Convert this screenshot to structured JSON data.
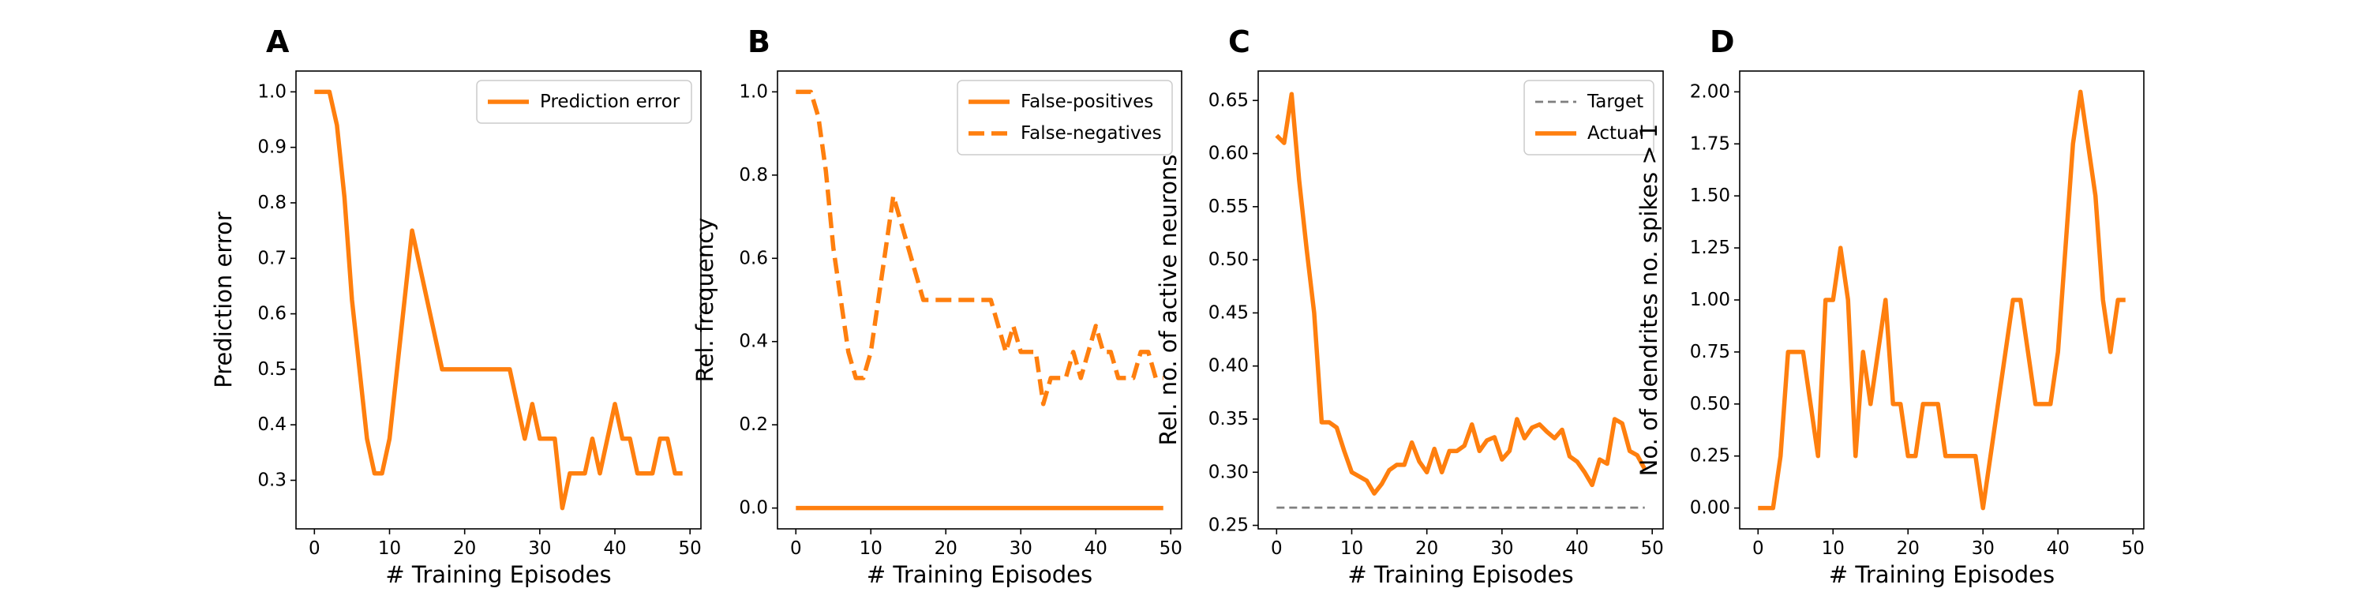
{
  "colors": {
    "orange": "#ff7f0e",
    "target_gray": "#7f7f7f",
    "frame": "#000000",
    "legend_border": "#cccccc"
  },
  "chart_data": [
    {
      "panel": "A",
      "type": "line",
      "xlabel": "# Training Episodes",
      "ylabel": "Prediction error",
      "xlim": [
        -2.45,
        51.45
      ],
      "ylim": [
        0.2125,
        1.0375
      ],
      "xticks": [
        0,
        10,
        20,
        30,
        40,
        50
      ],
      "yticks": [
        0.3,
        0.4,
        0.5,
        0.6,
        0.7,
        0.8,
        0.9,
        1.0
      ],
      "ytick_labels": [
        "0.3",
        "0.4",
        "0.5",
        "0.6",
        "0.7",
        "0.8",
        "0.9",
        "1.0"
      ],
      "grid": false,
      "legend_position": "upper right",
      "x": [
        0,
        1,
        2,
        3,
        4,
        5,
        6,
        7,
        8,
        9,
        10,
        11,
        12,
        13,
        14,
        15,
        16,
        17,
        18,
        19,
        20,
        21,
        22,
        23,
        24,
        25,
        26,
        27,
        28,
        29,
        30,
        31,
        32,
        33,
        34,
        35,
        36,
        37,
        38,
        39,
        40,
        41,
        42,
        43,
        44,
        45,
        46,
        47,
        48,
        49
      ],
      "series": [
        {
          "name": "Prediction error",
          "style": "solid",
          "color": "#ff7f0e",
          "values": [
            1.0,
            1.0,
            1.0,
            0.94,
            0.81,
            0.625,
            0.5,
            0.375,
            0.3125,
            0.3125,
            0.375,
            0.5,
            0.625,
            0.75,
            0.6875,
            0.625,
            0.5625,
            0.5,
            0.5,
            0.5,
            0.5,
            0.5,
            0.5,
            0.5,
            0.5,
            0.5,
            0.5,
            0.4375,
            0.375,
            0.4375,
            0.375,
            0.375,
            0.375,
            0.25,
            0.3125,
            0.3125,
            0.3125,
            0.375,
            0.3125,
            0.375,
            0.4375,
            0.375,
            0.375,
            0.3125,
            0.3125,
            0.3125,
            0.375,
            0.375,
            0.3125,
            0.3125
          ]
        }
      ]
    },
    {
      "panel": "B",
      "type": "line",
      "xlabel": "# Training Episodes",
      "ylabel": "Rel. frequency",
      "xlim": [
        -2.45,
        51.45
      ],
      "ylim": [
        -0.05,
        1.05
      ],
      "xticks": [
        0,
        10,
        20,
        30,
        40,
        50
      ],
      "yticks": [
        0.0,
        0.2,
        0.4,
        0.6,
        0.8,
        1.0
      ],
      "ytick_labels": [
        "0.0",
        "0.2",
        "0.4",
        "0.6",
        "0.8",
        "1.0"
      ],
      "grid": false,
      "legend_position": "upper right",
      "x": [
        0,
        1,
        2,
        3,
        4,
        5,
        6,
        7,
        8,
        9,
        10,
        11,
        12,
        13,
        14,
        15,
        16,
        17,
        18,
        19,
        20,
        21,
        22,
        23,
        24,
        25,
        26,
        27,
        28,
        29,
        30,
        31,
        32,
        33,
        34,
        35,
        36,
        37,
        38,
        39,
        40,
        41,
        42,
        43,
        44,
        45,
        46,
        47,
        48,
        49
      ],
      "series": [
        {
          "name": "False-positives",
          "style": "solid",
          "color": "#ff7f0e",
          "values": [
            0,
            0,
            0,
            0,
            0,
            0,
            0,
            0,
            0,
            0,
            0,
            0,
            0,
            0,
            0,
            0,
            0,
            0,
            0,
            0,
            0,
            0,
            0,
            0,
            0,
            0,
            0,
            0,
            0,
            0,
            0,
            0,
            0,
            0,
            0,
            0,
            0,
            0,
            0,
            0,
            0,
            0,
            0,
            0,
            0,
            0,
            0,
            0,
            0,
            0
          ]
        },
        {
          "name": "False-negatives",
          "style": "dashed",
          "color": "#ff7f0e",
          "values": [
            1.0,
            1.0,
            1.0,
            0.94,
            0.81,
            0.625,
            0.5,
            0.375,
            0.3125,
            0.3125,
            0.375,
            0.5,
            0.625,
            0.75,
            0.6875,
            0.625,
            0.5625,
            0.5,
            0.5,
            0.5,
            0.5,
            0.5,
            0.5,
            0.5,
            0.5,
            0.5,
            0.5,
            0.4375,
            0.375,
            0.4375,
            0.375,
            0.375,
            0.375,
            0.25,
            0.3125,
            0.3125,
            0.3125,
            0.375,
            0.3125,
            0.375,
            0.4375,
            0.375,
            0.375,
            0.3125,
            0.3125,
            0.3125,
            0.375,
            0.375,
            0.3125,
            0.3125
          ]
        }
      ]
    },
    {
      "panel": "C",
      "type": "line",
      "xlabel": "# Training Episodes",
      "ylabel": "Rel. no. of active neurons",
      "xlim": [
        -2.45,
        51.45
      ],
      "ylim": [
        0.2467,
        0.6777
      ],
      "xticks": [
        0,
        10,
        20,
        30,
        40,
        50
      ],
      "yticks": [
        0.25,
        0.3,
        0.35,
        0.4,
        0.45,
        0.5,
        0.55,
        0.6,
        0.65
      ],
      "ytick_labels": [
        "0.25",
        "0.30",
        "0.35",
        "0.40",
        "0.45",
        "0.50",
        "0.55",
        "0.60",
        "0.65"
      ],
      "grid": false,
      "legend_position": "upper right",
      "x": [
        0,
        1,
        2,
        3,
        4,
        5,
        6,
        7,
        8,
        9,
        10,
        11,
        12,
        13,
        14,
        15,
        16,
        17,
        18,
        19,
        20,
        21,
        22,
        23,
        24,
        25,
        26,
        27,
        28,
        29,
        30,
        31,
        32,
        33,
        34,
        35,
        36,
        37,
        38,
        39,
        40,
        41,
        42,
        43,
        44,
        45,
        46,
        47,
        48,
        49
      ],
      "series": [
        {
          "name": "Target",
          "style": "dashed",
          "color": "#7f7f7f",
          "values": [
            0.2667,
            0.2667,
            0.2667,
            0.2667,
            0.2667,
            0.2667,
            0.2667,
            0.2667,
            0.2667,
            0.2667,
            0.2667,
            0.2667,
            0.2667,
            0.2667,
            0.2667,
            0.2667,
            0.2667,
            0.2667,
            0.2667,
            0.2667,
            0.2667,
            0.2667,
            0.2667,
            0.2667,
            0.2667,
            0.2667,
            0.2667,
            0.2667,
            0.2667,
            0.2667,
            0.2667,
            0.2667,
            0.2667,
            0.2667,
            0.2667,
            0.2667,
            0.2667,
            0.2667,
            0.2667,
            0.2667,
            0.2667,
            0.2667,
            0.2667,
            0.2667,
            0.2667,
            0.2667,
            0.2667,
            0.2667,
            0.2667,
            0.2667
          ]
        },
        {
          "name": "Actual",
          "style": "solid",
          "color": "#ff7f0e",
          "values": [
            0.617,
            0.61,
            0.656,
            0.575,
            0.51,
            0.45,
            0.347,
            0.347,
            0.342,
            0.32,
            0.3,
            0.296,
            0.292,
            0.28,
            0.289,
            0.302,
            0.307,
            0.307,
            0.328,
            0.31,
            0.3,
            0.322,
            0.3,
            0.32,
            0.32,
            0.325,
            0.345,
            0.32,
            0.33,
            0.333,
            0.312,
            0.32,
            0.35,
            0.332,
            0.342,
            0.345,
            0.338,
            0.332,
            0.34,
            0.315,
            0.31,
            0.3,
            0.288,
            0.312,
            0.308,
            0.35,
            0.346,
            0.32,
            0.316,
            0.303
          ]
        }
      ]
    },
    {
      "panel": "D",
      "type": "line",
      "xlabel": "# Training Episodes",
      "ylabel": "No. of dendrites no. spikes > 1",
      "xlim": [
        -2.45,
        51.45
      ],
      "ylim": [
        -0.1,
        2.1
      ],
      "xticks": [
        0,
        10,
        20,
        30,
        40,
        50
      ],
      "yticks": [
        0.0,
        0.25,
        0.5,
        0.75,
        1.0,
        1.25,
        1.5,
        1.75,
        2.0
      ],
      "ytick_labels": [
        "0.00",
        "0.25",
        "0.50",
        "0.75",
        "1.00",
        "1.25",
        "1.50",
        "1.75",
        "2.00"
      ],
      "grid": false,
      "legend_position": "none",
      "x": [
        0,
        1,
        2,
        3,
        4,
        5,
        6,
        7,
        8,
        9,
        10,
        11,
        12,
        13,
        14,
        15,
        16,
        17,
        18,
        19,
        20,
        21,
        22,
        23,
        24,
        25,
        26,
        27,
        28,
        29,
        30,
        31,
        32,
        33,
        34,
        35,
        36,
        37,
        38,
        39,
        40,
        41,
        42,
        43,
        44,
        45,
        46,
        47,
        48,
        49
      ],
      "series": [
        {
          "name": "",
          "style": "solid",
          "color": "#ff7f0e",
          "values": [
            0,
            0,
            0,
            0.25,
            0.75,
            0.75,
            0.75,
            0.5,
            0.25,
            1.0,
            1.0,
            1.25,
            1.0,
            0.25,
            0.75,
            0.5,
            0.75,
            1.0,
            0.5,
            0.5,
            0.25,
            0.25,
            0.5,
            0.5,
            0.5,
            0.25,
            0.25,
            0.25,
            0.25,
            0.25,
            0,
            0.25,
            0.5,
            0.75,
            1.0,
            1.0,
            0.75,
            0.5,
            0.5,
            0.5,
            0.75,
            1.25,
            1.75,
            2.0,
            1.75,
            1.5,
            1.0,
            0.75,
            1.0,
            1.0
          ]
        }
      ]
    }
  ]
}
